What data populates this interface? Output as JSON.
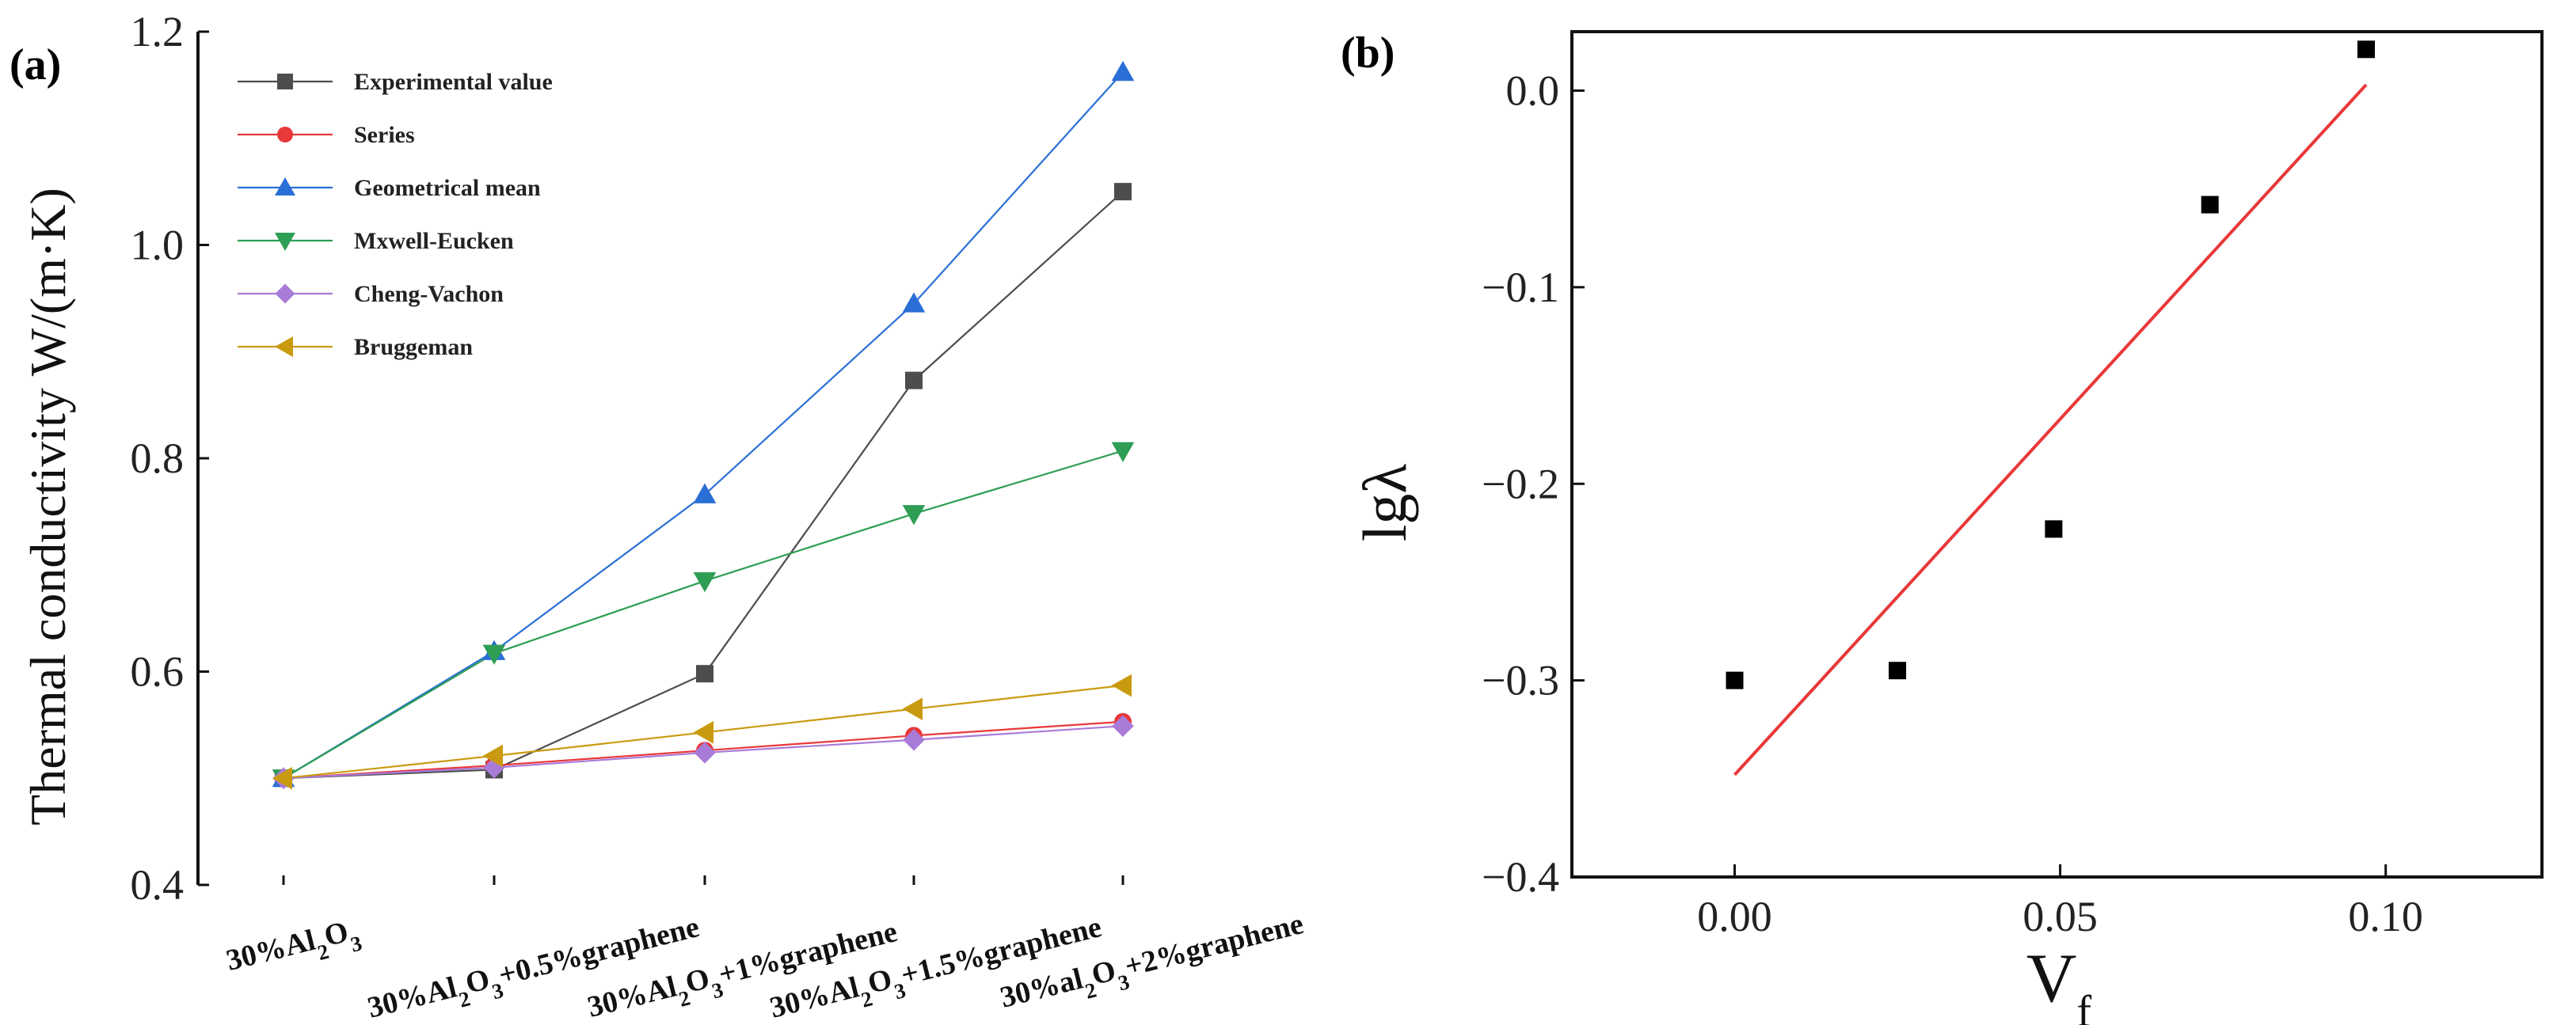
{
  "chart_data": [
    {
      "panel": "(a)",
      "type": "line",
      "xlabel": "",
      "ylabel": "Thermal conductivity W/(m·K)",
      "ylim": [
        0.4,
        1.2
      ],
      "yticks": [
        "0.4",
        "0.6",
        "0.8",
        "1.0",
        "1.2"
      ],
      "categories": [
        {
          "parts": [
            [
              "30%Al",
              false
            ],
            [
              "2",
              true
            ],
            [
              "O",
              false
            ],
            [
              "3",
              true
            ]
          ]
        },
        {
          "parts": [
            [
              "30%Al",
              false
            ],
            [
              "2",
              true
            ],
            [
              "O",
              false
            ],
            [
              "3",
              true
            ],
            [
              "+0.5%graphene",
              false
            ]
          ]
        },
        {
          "parts": [
            [
              "30%Al",
              false
            ],
            [
              "2",
              true
            ],
            [
              "O",
              false
            ],
            [
              "3",
              true
            ],
            [
              "+1%graphene",
              false
            ]
          ]
        },
        {
          "parts": [
            [
              "30%Al",
              false
            ],
            [
              "2",
              true
            ],
            [
              "O",
              false
            ],
            [
              "3",
              true
            ],
            [
              "+1.5%graphene",
              false
            ]
          ]
        },
        {
          "parts": [
            [
              "30%al",
              false
            ],
            [
              "2",
              true
            ],
            [
              "O",
              false
            ],
            [
              "3",
              true
            ],
            [
              "+2%graphene",
              false
            ]
          ]
        }
      ],
      "series": [
        {
          "name": "Experimental value",
          "marker": "square",
          "color": "#4d4d4d",
          "values": [
            0.5,
            0.508,
            0.598,
            0.873,
            1.05
          ]
        },
        {
          "name": "Series",
          "marker": "circle",
          "color": "#e8383a",
          "values": [
            0.5,
            0.512,
            0.526,
            0.54,
            0.553
          ]
        },
        {
          "name": "Geometrical mean",
          "marker": "triangle-up",
          "color": "#2a6fd6",
          "values": [
            0.5,
            0.619,
            0.766,
            0.945,
            1.162
          ]
        },
        {
          "name": "Mxwell-Eucken",
          "marker": "triangle-down",
          "color": "#2e9e55",
          "values": [
            0.5,
            0.617,
            0.685,
            0.748,
            0.807
          ]
        },
        {
          "name": "Cheng-Vachon",
          "marker": "diamond",
          "color": "#a97bd8",
          "values": [
            0.5,
            0.51,
            0.524,
            0.536,
            0.549
          ]
        },
        {
          "name": "Bruggeman",
          "marker": "triangle-left",
          "color": "#c99a10",
          "values": [
            0.5,
            0.521,
            0.543,
            0.565,
            0.587
          ]
        }
      ],
      "legend": "top-left",
      "grid": false
    },
    {
      "panel": "(b)",
      "type": "scatter",
      "xlabel": "V",
      "xlabel_sub": "f",
      "ylabel": "lgλ",
      "xlim": [
        -0.025,
        0.124
      ],
      "ylim": [
        -0.4,
        0.03
      ],
      "xticks": [
        {
          "v": 0.0,
          "label": "0.00"
        },
        {
          "v": 0.05,
          "label": "0.05"
        },
        {
          "v": 0.1,
          "label": "0.10"
        }
      ],
      "yticks": [
        {
          "v": 0.0,
          "label": "0.0"
        },
        {
          "v": -0.1,
          "label": "−0.1"
        },
        {
          "v": -0.2,
          "label": "−0.2"
        },
        {
          "v": -0.3,
          "label": "−0.3"
        },
        {
          "v": -0.4,
          "label": "−0.4"
        }
      ],
      "points": [
        {
          "x": 0.0,
          "y": -0.3
        },
        {
          "x": 0.025,
          "y": -0.295
        },
        {
          "x": 0.049,
          "y": -0.223
        },
        {
          "x": 0.073,
          "y": -0.058
        },
        {
          "x": 0.097,
          "y": 0.021
        }
      ],
      "fit_line": {
        "x": [
          0.0,
          0.097
        ],
        "y": [
          -0.348,
          0.003
        ],
        "color": "#e8383a"
      },
      "marker_color": "#000000",
      "grid": false
    }
  ]
}
